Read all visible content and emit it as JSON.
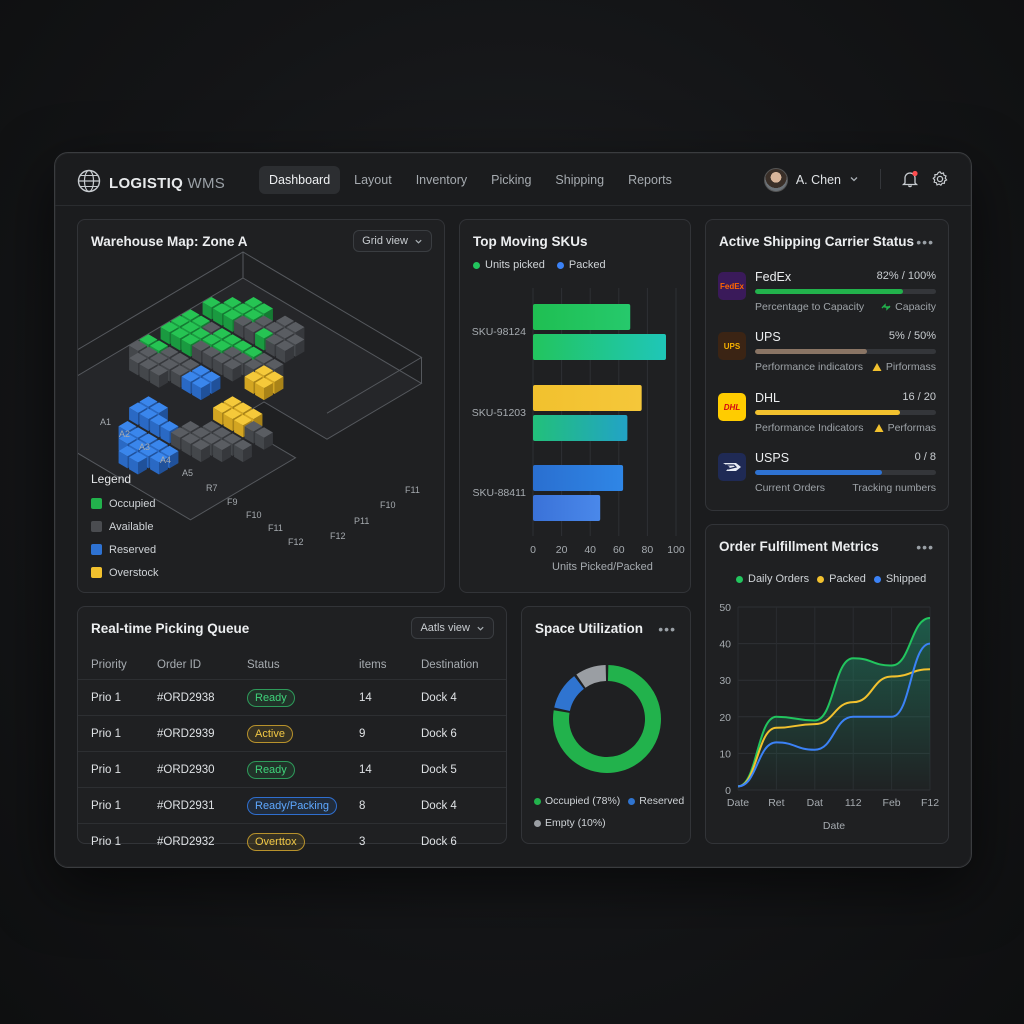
{
  "app": {
    "brand": "LOGISTIQ",
    "brand_suffix": "WMS",
    "nav": [
      "Dashboard",
      "Layout",
      "Inventory",
      "Picking",
      "Shipping",
      "Reports"
    ],
    "active_tab": "Dashboard",
    "user_name": "A. Chen",
    "notification_dot_color": "#ff4d4f"
  },
  "warehouse_map": {
    "title": "Warehouse Map: Zone A",
    "view_button": "Grid view",
    "row_labels_left": [
      "A1",
      "A2",
      "A3",
      "A4",
      "A5",
      "R7",
      "F9",
      "F10",
      "F11",
      "F12"
    ],
    "row_labels_right": [
      "F11",
      "F10",
      "P11",
      "F12"
    ],
    "legend_title": "Legend",
    "legend": [
      {
        "label": "Occupied",
        "color": "#22b24c"
      },
      {
        "label": "Available",
        "color": "#4a4c50"
      },
      {
        "label": "Reserved",
        "color": "#2e72d2"
      },
      {
        "label": "Overstock",
        "color": "#f2c12e"
      }
    ]
  },
  "top_skus": {
    "title": "Top Moving SKUs",
    "legend": [
      {
        "label": "Units picked",
        "color": "#22c55e"
      },
      {
        "label": "Packed",
        "color": "#3b82f6"
      }
    ],
    "x_label": "Units Picked/Packed"
  },
  "chart_data": [
    {
      "type": "bar",
      "orientation": "horizontal",
      "title": "Top Moving SKUs",
      "categories": [
        "SKU-98124",
        "SKU-51203",
        "SKU-88411"
      ],
      "series": [
        {
          "name": "Units picked",
          "values": [
            68,
            76,
            63
          ]
        },
        {
          "name": "Packed",
          "values": [
            93,
            66,
            47
          ]
        }
      ],
      "xlabel": "Units Picked/Packed",
      "xticks": [
        0,
        20,
        40,
        60,
        80,
        100
      ],
      "xlim": [
        0,
        100
      ],
      "grid": true,
      "legend": "top-left"
    },
    {
      "type": "pie",
      "title": "Space Utilization",
      "labels": [
        "Occupied (78%)",
        "Reserved",
        "Empty (10%)"
      ],
      "values": [
        78,
        12,
        10
      ],
      "colors": [
        "#22b24c",
        "#2f74d0",
        "#9a9ea3"
      ]
    },
    {
      "type": "line",
      "title": "Order Fulfillment Metrics",
      "x": [
        "Date",
        "Ret",
        "Dat",
        "112",
        "Feb",
        "F12"
      ],
      "series": [
        {
          "name": "Daily Orders",
          "values": [
            1,
            20,
            19,
            36,
            34,
            47
          ]
        },
        {
          "name": "Packed",
          "values": [
            1,
            17,
            18,
            24,
            31,
            33
          ]
        },
        {
          "name": "Shipped",
          "values": [
            1,
            13,
            11,
            20,
            20,
            40
          ]
        }
      ],
      "xlabel": "Date",
      "yticks": [
        0,
        10,
        20,
        30,
        40,
        50
      ],
      "ylim": [
        0,
        50
      ],
      "grid": true,
      "legend": "top"
    }
  ],
  "carriers": {
    "title": "Active Shipping Carrier Status",
    "items": [
      {
        "name": "FedEx",
        "value": "82% / 100%",
        "progress": 0.82,
        "color": "#22b24c",
        "sub_left": "Percentage to Capacity",
        "sub_right": "Capacity",
        "icon": "check-arrows-icon",
        "logo_text": "FedEx",
        "logo_bg": "#3a1a5a",
        "logo_fg": "#ff6600"
      },
      {
        "name": "UPS",
        "value": "5% / 50%",
        "progress": 0.62,
        "color": "#8a7565",
        "sub_left": "Performance indicators",
        "sub_right": "Pirformass",
        "icon": "warning-icon",
        "logo_text": "UPS",
        "logo_bg": "#3b2414",
        "logo_fg": "#f5b000"
      },
      {
        "name": "DHL",
        "value": "16 / 20",
        "progress": 0.8,
        "color": "#f2c12e",
        "sub_left": "Performance Indicators",
        "sub_right": "Performas",
        "icon": "warning-icon",
        "logo_text": "DHL",
        "logo_bg": "#ffcc00",
        "logo_fg": "#d40511"
      },
      {
        "name": "USPS",
        "value": "0 / 8",
        "progress": 0.7,
        "color": "#2e72d2",
        "sub_left": "Current Orders",
        "sub_right": "Tracking numbers",
        "icon": "",
        "logo_text": "USPS",
        "logo_bg": "#1f2a55",
        "logo_fg": "#ffffff"
      }
    ]
  },
  "fulfillment": {
    "title": "Order Fulfillment Metrics",
    "legend": [
      {
        "label": "Daily Orders",
        "color": "#22c55e"
      },
      {
        "label": "Packed",
        "color": "#f2c12e"
      },
      {
        "label": "Shipped",
        "color": "#3b82f6"
      }
    ]
  },
  "picking_queue": {
    "title": "Real-time Picking Queue",
    "view_button": "Aatls view",
    "columns": [
      "Priority",
      "Order ID",
      "Status",
      "items",
      "Destination"
    ],
    "rows": [
      {
        "priority": "Prio 1",
        "order_id": "#ORD2938",
        "status": "Ready",
        "status_style": "green",
        "items": "14",
        "destination": "Dock 4"
      },
      {
        "priority": "Prio 1",
        "order_id": "#ORD2939",
        "status": "Active",
        "status_style": "yellow",
        "items": "9",
        "destination": "Dock 6"
      },
      {
        "priority": "Prio 1",
        "order_id": "#ORD2930",
        "status": "Ready",
        "status_style": "green",
        "items": "14",
        "destination": "Dock 5"
      },
      {
        "priority": "Prio 1",
        "order_id": "#ORD2931",
        "status": "Ready/Packing",
        "status_style": "blue",
        "items": "8",
        "destination": "Dock 4"
      },
      {
        "priority": "Prio 1",
        "order_id": "#ORD2932",
        "status": "Overttox",
        "status_style": "yellow",
        "items": "3",
        "destination": "Dock 6"
      }
    ]
  },
  "space_utilization": {
    "title": "Space Utilization",
    "legend": [
      {
        "label": "Occupied (78%)",
        "color": "#22b24c"
      },
      {
        "label": "Reserved",
        "color": "#2f74d0"
      },
      {
        "label": "Empty (10%)",
        "color": "#9a9ea3"
      }
    ]
  }
}
